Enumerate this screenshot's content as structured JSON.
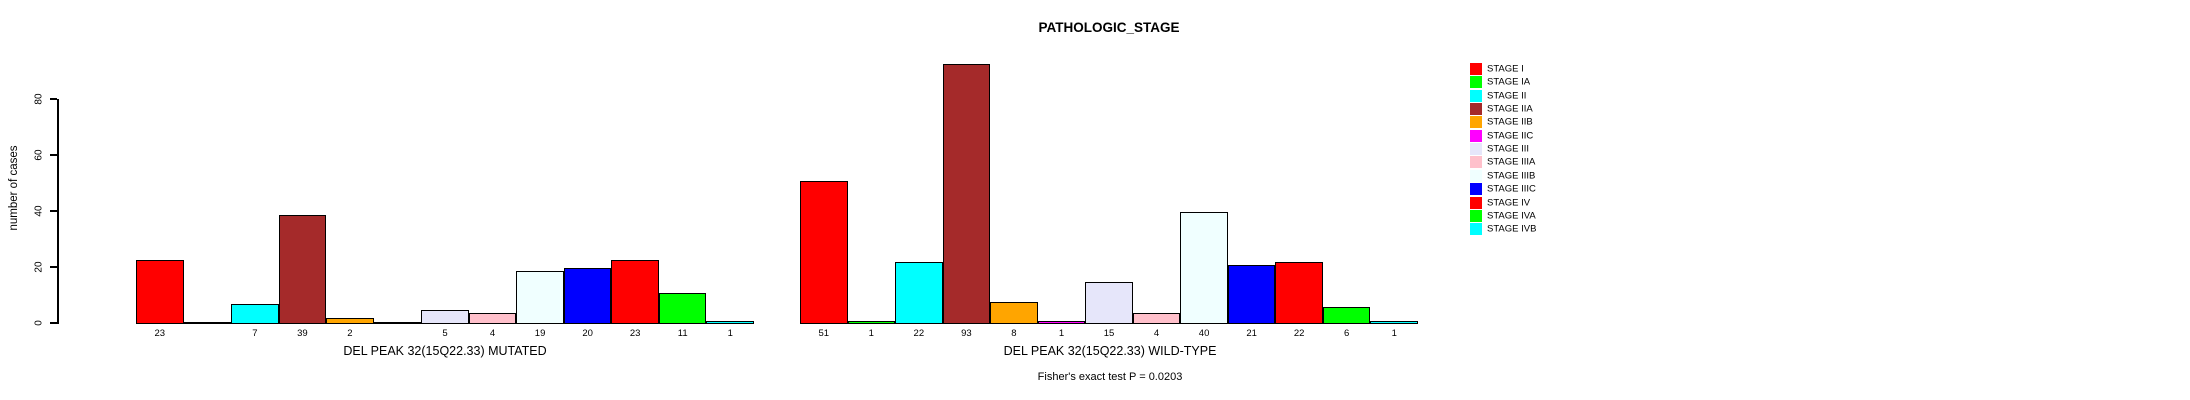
{
  "chart_data": {
    "type": "bar",
    "title": "PATHOLOGIC_STAGE",
    "ylabel": "number of cases",
    "footnote": "Fisher's exact test P = 0.0203",
    "categories": [
      "STAGE I",
      "STAGE IA",
      "STAGE II",
      "STAGE IIA",
      "STAGE IIB",
      "STAGE IIC",
      "STAGE III",
      "STAGE IIIA",
      "STAGE IIIB",
      "STAGE IIIC",
      "STAGE IV",
      "STAGE IVA",
      "STAGE IVB"
    ],
    "colors": [
      "#FF0000",
      "#00FF00",
      "#00FFFF",
      "#A52A2A",
      "#FFA500",
      "#FF00FF",
      "#E6E6FA",
      "#FFC0CB",
      "#F0FFFF",
      "#0000FF",
      "#FF0000",
      "#00FF00",
      "#00FFFF"
    ],
    "series": [
      {
        "name": "DEL PEAK 32(15Q22.33) MUTATED",
        "values": [
          23,
          0,
          7,
          39,
          2,
          0,
          5,
          4,
          19,
          20,
          23,
          11,
          1
        ]
      },
      {
        "name": "DEL PEAK 32(15Q22.33) WILD-TYPE",
        "values": [
          51,
          1,
          22,
          93,
          8,
          1,
          15,
          4,
          40,
          21,
          22,
          6,
          1
        ]
      }
    ],
    "ylim": [
      0,
      80
    ],
    "yticks": [
      0,
      20,
      40,
      60,
      80
    ],
    "grid": false,
    "legend_position": "right",
    "bar_labels_shown_for_nonzero_values": true
  }
}
